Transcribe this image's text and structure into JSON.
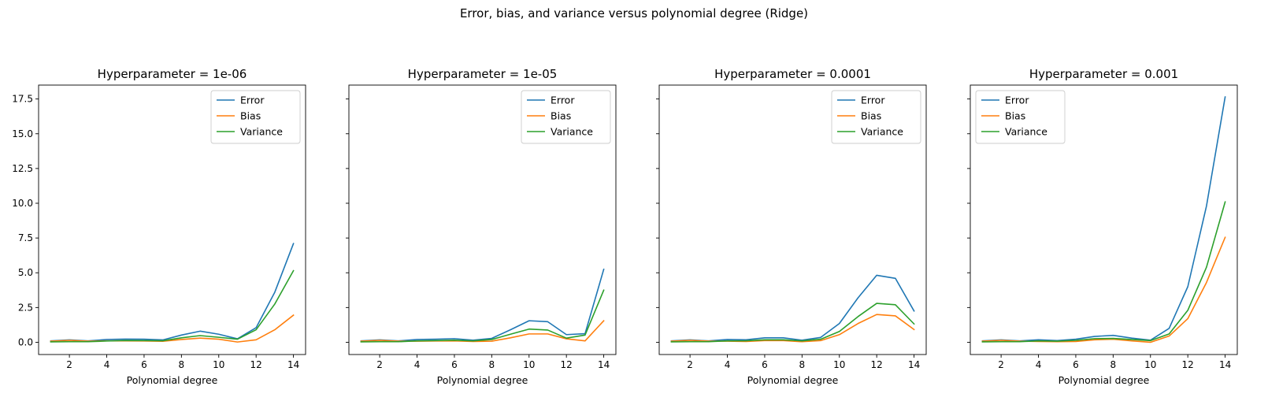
{
  "figure_title": "Error, bias, and variance versus polynomial degree (Ridge)",
  "colors": {
    "error": "#1f77b4",
    "bias": "#ff7f0e",
    "variance": "#2ca02c"
  },
  "chart_data": [
    {
      "type": "line",
      "title": "Hyperparameter = 1e-06",
      "xlabel": "Polynomial degree",
      "ylabel": "",
      "xlim": [
        0.35,
        14.65
      ],
      "ylim": [
        -0.88,
        18.5
      ],
      "xticks": [
        2,
        4,
        6,
        8,
        10,
        12,
        14
      ],
      "yticks": [
        "0.0",
        "2.5",
        "5.0",
        "7.5",
        "10.0",
        "12.5",
        "15.0",
        "17.5"
      ],
      "show_yticklabels": true,
      "legend": "top-right",
      "x": [
        1,
        2,
        3,
        4,
        5,
        6,
        7,
        8,
        9,
        10,
        11,
        12,
        13,
        14
      ],
      "series": [
        {
          "name": "Error",
          "color": "#1f77b4",
          "values": [
            0.1,
            0.17,
            0.1,
            0.2,
            0.23,
            0.22,
            0.17,
            0.52,
            0.8,
            0.58,
            0.25,
            1.05,
            3.6,
            7.1
          ]
        },
        {
          "name": "Bias",
          "color": "#ff7f0e",
          "values": [
            0.08,
            0.14,
            0.08,
            0.1,
            0.1,
            0.09,
            0.07,
            0.2,
            0.3,
            0.22,
            0.02,
            0.18,
            0.9,
            1.95
          ]
        },
        {
          "name": "Variance",
          "color": "#2ca02c",
          "values": [
            0.03,
            0.04,
            0.04,
            0.09,
            0.13,
            0.12,
            0.11,
            0.32,
            0.48,
            0.36,
            0.22,
            0.9,
            2.75,
            5.15
          ]
        }
      ]
    },
    {
      "type": "line",
      "title": "Hyperparameter = 1e-05",
      "xlabel": "Polynomial degree",
      "ylabel": "",
      "xlim": [
        0.35,
        14.65
      ],
      "ylim": [
        -0.88,
        18.5
      ],
      "xticks": [
        2,
        4,
        6,
        8,
        10,
        12,
        14
      ],
      "yticks": [],
      "show_yticklabels": false,
      "legend": "top-right",
      "x": [
        1,
        2,
        3,
        4,
        5,
        6,
        7,
        8,
        9,
        10,
        11,
        12,
        13,
        14
      ],
      "series": [
        {
          "name": "Error",
          "color": "#1f77b4",
          "values": [
            0.1,
            0.17,
            0.1,
            0.2,
            0.22,
            0.26,
            0.15,
            0.28,
            0.9,
            1.55,
            1.48,
            0.55,
            0.62,
            5.25
          ]
        },
        {
          "name": "Bias",
          "color": "#ff7f0e",
          "values": [
            0.08,
            0.14,
            0.08,
            0.08,
            0.09,
            0.1,
            0.06,
            0.08,
            0.32,
            0.6,
            0.6,
            0.25,
            0.1,
            1.55
          ]
        },
        {
          "name": "Variance",
          "color": "#2ca02c",
          "values": [
            0.03,
            0.04,
            0.04,
            0.1,
            0.12,
            0.15,
            0.1,
            0.2,
            0.58,
            0.95,
            0.88,
            0.3,
            0.52,
            3.75
          ]
        }
      ]
    },
    {
      "type": "line",
      "title": "Hyperparameter = 0.0001",
      "xlabel": "Polynomial degree",
      "ylabel": "",
      "xlim": [
        0.35,
        14.65
      ],
      "ylim": [
        -0.88,
        18.5
      ],
      "xticks": [
        2,
        4,
        6,
        8,
        10,
        12,
        14
      ],
      "yticks": [],
      "show_yticklabels": false,
      "legend": "top-right",
      "x": [
        1,
        2,
        3,
        4,
        5,
        6,
        7,
        8,
        9,
        10,
        11,
        12,
        13,
        14
      ],
      "series": [
        {
          "name": "Error",
          "color": "#1f77b4",
          "values": [
            0.1,
            0.17,
            0.1,
            0.2,
            0.18,
            0.32,
            0.32,
            0.15,
            0.35,
            1.35,
            3.2,
            4.82,
            4.6,
            2.25
          ]
        },
        {
          "name": "Bias",
          "color": "#ff7f0e",
          "values": [
            0.08,
            0.14,
            0.08,
            0.08,
            0.06,
            0.12,
            0.12,
            0.04,
            0.12,
            0.55,
            1.35,
            2.0,
            1.9,
            0.92
          ]
        },
        {
          "name": "Variance",
          "color": "#2ca02c",
          "values": [
            0.03,
            0.04,
            0.04,
            0.1,
            0.11,
            0.18,
            0.18,
            0.1,
            0.22,
            0.78,
            1.85,
            2.8,
            2.7,
            1.32
          ]
        }
      ]
    },
    {
      "type": "line",
      "title": "Hyperparameter = 0.001",
      "xlabel": "Polynomial degree",
      "ylabel": "",
      "xlim": [
        0.35,
        14.65
      ],
      "ylim": [
        -0.88,
        18.5
      ],
      "xticks": [
        2,
        4,
        6,
        8,
        10,
        12,
        14
      ],
      "yticks": [],
      "show_yticklabels": false,
      "legend": "top-left",
      "x": [
        1,
        2,
        3,
        4,
        5,
        6,
        7,
        8,
        9,
        10,
        11,
        12,
        13,
        14
      ],
      "series": [
        {
          "name": "Error",
          "color": "#1f77b4",
          "values": [
            0.1,
            0.17,
            0.1,
            0.18,
            0.12,
            0.22,
            0.42,
            0.5,
            0.3,
            0.15,
            1.0,
            4.0,
            9.8,
            17.65
          ]
        },
        {
          "name": "Bias",
          "color": "#ff7f0e",
          "values": [
            0.08,
            0.14,
            0.08,
            0.06,
            0.04,
            0.06,
            0.18,
            0.22,
            0.1,
            0.0,
            0.45,
            1.7,
            4.3,
            7.55
          ]
        },
        {
          "name": "Variance",
          "color": "#2ca02c",
          "values": [
            0.03,
            0.04,
            0.04,
            0.1,
            0.08,
            0.14,
            0.26,
            0.28,
            0.2,
            0.12,
            0.6,
            2.3,
            5.4,
            10.1
          ]
        }
      ]
    }
  ]
}
